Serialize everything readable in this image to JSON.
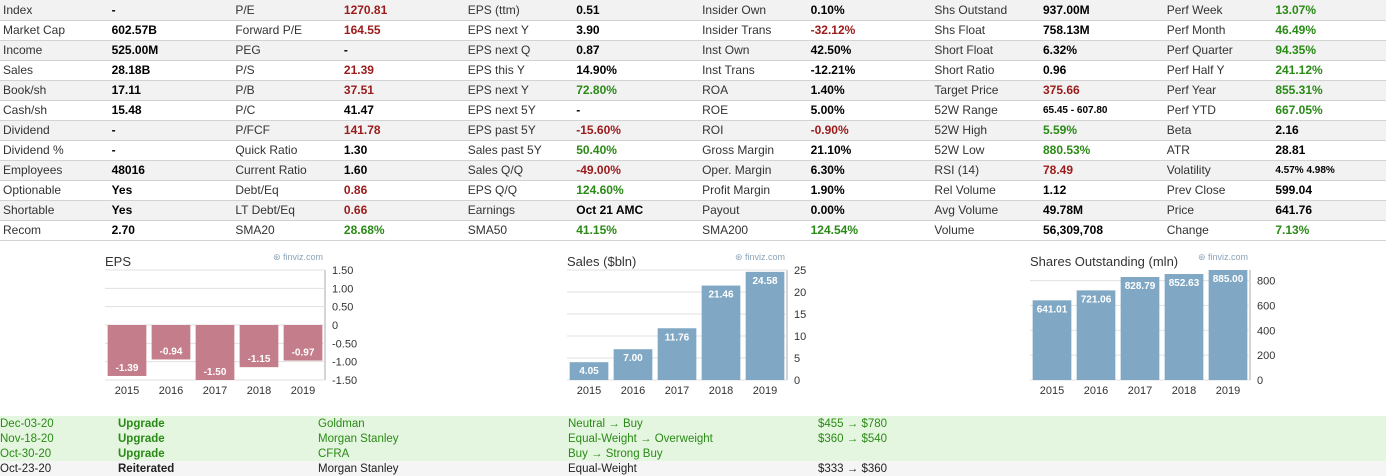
{
  "snapshot": [
    [
      [
        "Index",
        "-",
        "def"
      ],
      [
        "P/E",
        "1270.81",
        "neg"
      ],
      [
        "EPS (ttm)",
        "0.51",
        "def"
      ],
      [
        "Insider Own",
        "0.10%",
        "def"
      ],
      [
        "Shs Outstand",
        "937.00M",
        "def"
      ],
      [
        "Perf Week",
        "13.07%",
        "pos"
      ]
    ],
    [
      [
        "Market Cap",
        "602.57B",
        "def"
      ],
      [
        "Forward P/E",
        "164.55",
        "neg"
      ],
      [
        "EPS next Y",
        "3.90",
        "def"
      ],
      [
        "Insider Trans",
        "-32.12%",
        "neg"
      ],
      [
        "Shs Float",
        "758.13M",
        "def"
      ],
      [
        "Perf Month",
        "46.49%",
        "pos"
      ]
    ],
    [
      [
        "Income",
        "525.00M",
        "def"
      ],
      [
        "PEG",
        "-",
        "def"
      ],
      [
        "EPS next Q",
        "0.87",
        "def"
      ],
      [
        "Inst Own",
        "42.50%",
        "def"
      ],
      [
        "Short Float",
        "6.32%",
        "def"
      ],
      [
        "Perf Quarter",
        "94.35%",
        "pos"
      ]
    ],
    [
      [
        "Sales",
        "28.18B",
        "def"
      ],
      [
        "P/S",
        "21.39",
        "neg"
      ],
      [
        "EPS this Y",
        "14.90%",
        "def"
      ],
      [
        "Inst Trans",
        "-12.21%",
        "def"
      ],
      [
        "Short Ratio",
        "0.96",
        "def"
      ],
      [
        "Perf Half Y",
        "241.12%",
        "pos"
      ]
    ],
    [
      [
        "Book/sh",
        "17.11",
        "def"
      ],
      [
        "P/B",
        "37.51",
        "neg"
      ],
      [
        "EPS next Y",
        "72.80%",
        "pos"
      ],
      [
        "ROA",
        "1.40%",
        "def"
      ],
      [
        "Target Price",
        "375.66",
        "neg"
      ],
      [
        "Perf Year",
        "855.31%",
        "pos"
      ]
    ],
    [
      [
        "Cash/sh",
        "15.48",
        "def"
      ],
      [
        "P/C",
        "41.47",
        "def"
      ],
      [
        "EPS next 5Y",
        "-",
        "def"
      ],
      [
        "ROE",
        "5.00%",
        "def"
      ],
      [
        "52W Range",
        "65.45 - 607.80",
        "small"
      ],
      [
        "Perf YTD",
        "667.05%",
        "pos"
      ]
    ],
    [
      [
        "Dividend",
        "-",
        "def"
      ],
      [
        "P/FCF",
        "141.78",
        "neg"
      ],
      [
        "EPS past 5Y",
        "-15.60%",
        "neg"
      ],
      [
        "ROI",
        "-0.90%",
        "neg"
      ],
      [
        "52W High",
        "5.59%",
        "pos"
      ],
      [
        "Beta",
        "2.16",
        "def"
      ]
    ],
    [
      [
        "Dividend %",
        "-",
        "def"
      ],
      [
        "Quick Ratio",
        "1.30",
        "def"
      ],
      [
        "Sales past 5Y",
        "50.40%",
        "pos"
      ],
      [
        "Gross Margin",
        "21.10%",
        "def"
      ],
      [
        "52W Low",
        "880.53%",
        "pos"
      ],
      [
        "ATR",
        "28.81",
        "def"
      ]
    ],
    [
      [
        "Employees",
        "48016",
        "def"
      ],
      [
        "Current Ratio",
        "1.60",
        "def"
      ],
      [
        "Sales Q/Q",
        "-49.00%",
        "neg"
      ],
      [
        "Oper. Margin",
        "6.30%",
        "def"
      ],
      [
        "RSI (14)",
        "78.49",
        "neg"
      ],
      [
        "Volatility",
        "4.57% 4.98%",
        "small"
      ]
    ],
    [
      [
        "Optionable",
        "Yes",
        "def"
      ],
      [
        "Debt/Eq",
        "0.86",
        "neg"
      ],
      [
        "EPS Q/Q",
        "124.60%",
        "pos"
      ],
      [
        "Profit Margin",
        "1.90%",
        "def"
      ],
      [
        "Rel Volume",
        "1.12",
        "def"
      ],
      [
        "Prev Close",
        "599.04",
        "def"
      ]
    ],
    [
      [
        "Shortable",
        "Yes",
        "def"
      ],
      [
        "LT Debt/Eq",
        "0.66",
        "neg"
      ],
      [
        "Earnings",
        "Oct 21 AMC",
        "def"
      ],
      [
        "Payout",
        "0.00%",
        "def"
      ],
      [
        "Avg Volume",
        "49.78M",
        "def"
      ],
      [
        "Price",
        "641.76",
        "def"
      ]
    ],
    [
      [
        "Recom",
        "2.70",
        "def"
      ],
      [
        "SMA20",
        "28.68%",
        "pos"
      ],
      [
        "SMA50",
        "41.15%",
        "pos"
      ],
      [
        "SMA200",
        "124.54%",
        "pos"
      ],
      [
        "Volume",
        "56,309,708",
        "def"
      ],
      [
        "Change",
        "7.13%",
        "pos"
      ]
    ]
  ],
  "colors": {
    "neg": "#9b1a1a",
    "pos": "#2a8a16",
    "eps_bar": "#c47d8a",
    "blue_bar": "#80a8c4",
    "grid": "#e0e0e0"
  },
  "watermark": "finviz.com",
  "chart_data": [
    {
      "type": "bar",
      "title": "EPS",
      "categories": [
        "2015",
        "2016",
        "2017",
        "2018",
        "2019"
      ],
      "values": [
        -1.39,
        -0.94,
        -1.5,
        -1.15,
        -0.97
      ],
      "labels": [
        "-1.39",
        "-0.94",
        "-1.50",
        "-1.15",
        "-0.97"
      ],
      "ylim": [
        -1.5,
        1.5
      ],
      "yticks": [
        "1.50",
        "1.00",
        "0.50",
        "0",
        "-0.50",
        "-1.00",
        "-1.50"
      ],
      "ytick_values": [
        1.5,
        1.0,
        0.5,
        0,
        -0.5,
        -1.0,
        -1.5
      ]
    },
    {
      "type": "bar",
      "title": "Sales ($bln)",
      "categories": [
        "2015",
        "2016",
        "2017",
        "2018",
        "2019"
      ],
      "values": [
        4.05,
        7.0,
        11.76,
        21.46,
        24.58
      ],
      "labels": [
        "4.05",
        "7.00",
        "11.76",
        "21.46",
        "24.58"
      ],
      "ylim": [
        0,
        25
      ],
      "yticks": [
        "25",
        "20",
        "15",
        "10",
        "5",
        "0"
      ],
      "ytick_values": [
        25,
        20,
        15,
        10,
        5,
        0
      ]
    },
    {
      "type": "bar",
      "title": "Shares Outstanding (mln)",
      "categories": [
        "2015",
        "2016",
        "2017",
        "2018",
        "2019"
      ],
      "values": [
        641.01,
        721.06,
        828.79,
        852.63,
        885.0
      ],
      "labels": [
        "641.01",
        "721.06",
        "828.79",
        "852.63",
        "885.00"
      ],
      "ylim": [
        0,
        885
      ],
      "yticks": [
        "800",
        "600",
        "400",
        "200",
        "0"
      ],
      "ytick_values": [
        800,
        600,
        400,
        200,
        0
      ]
    }
  ],
  "ratings": [
    {
      "date": "Dec-03-20",
      "action": "Upgrade",
      "firm": "Goldman",
      "rating": "Neutral → Buy",
      "target": "$455 → $780",
      "type": "up"
    },
    {
      "date": "Nov-18-20",
      "action": "Upgrade",
      "firm": "Morgan Stanley",
      "rating": "Equal-Weight → Overweight",
      "target": "$360 → $540",
      "type": "up"
    },
    {
      "date": "Oct-30-20",
      "action": "Upgrade",
      "firm": "CFRA",
      "rating": "Buy → Strong Buy",
      "target": "",
      "type": "up"
    },
    {
      "date": "Oct-23-20",
      "action": "Reiterated",
      "firm": "Morgan Stanley",
      "rating": "Equal-Weight",
      "target": "$333 → $360",
      "type": "re"
    }
  ]
}
